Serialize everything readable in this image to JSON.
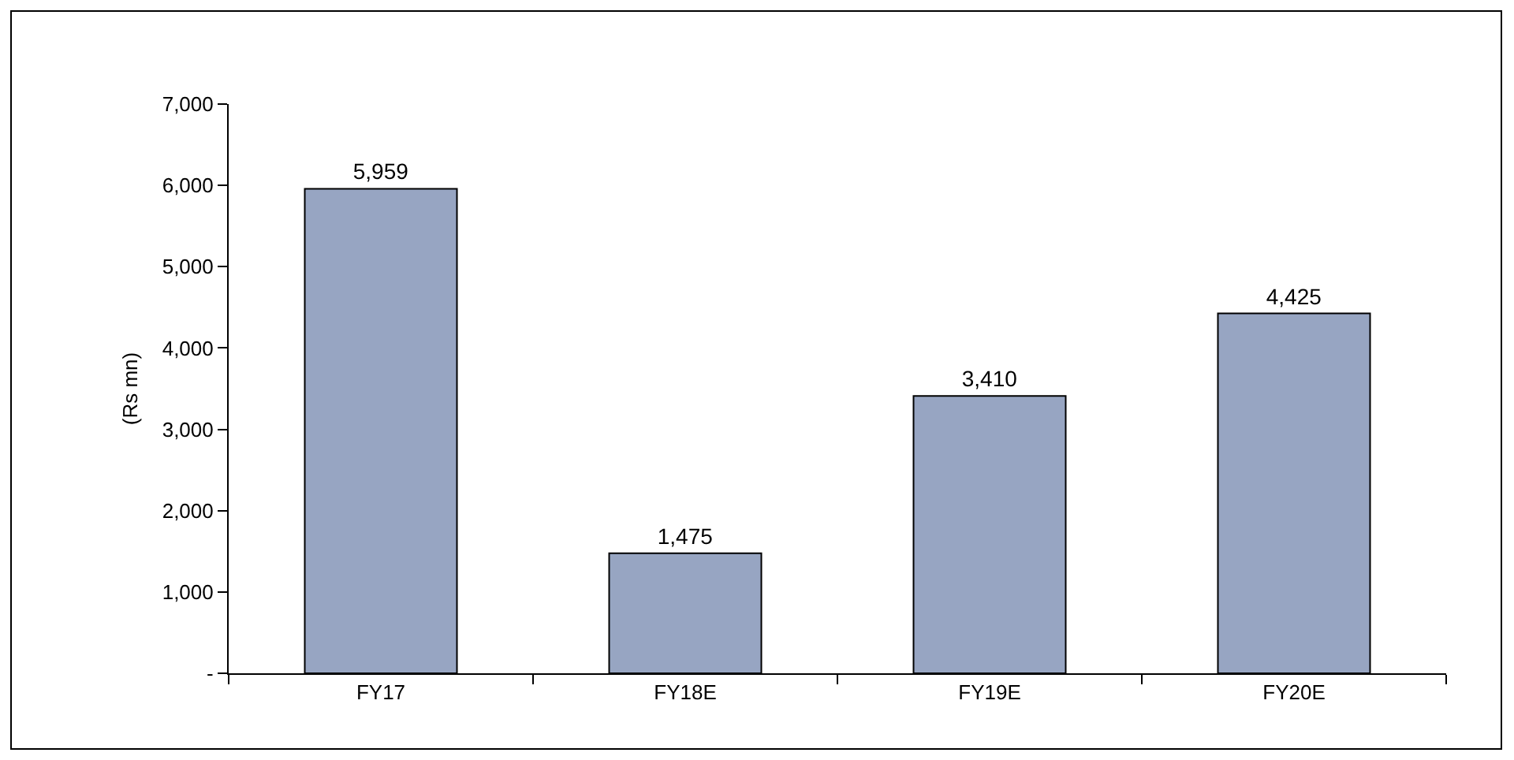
{
  "chart_data": {
    "type": "bar",
    "ylabel": "(Rs mn)",
    "categories": [
      "FY17",
      "FY18E",
      "FY19E",
      "FY20E"
    ],
    "values": [
      5959,
      1475,
      3410,
      4425
    ],
    "color": "#97a5c2",
    "ylim": [
      0,
      7000
    ],
    "yticks": [
      {
        "value": 0,
        "label": "-"
      },
      {
        "value": 1000,
        "label": "1,000"
      },
      {
        "value": 2000,
        "label": "2,000"
      },
      {
        "value": 3000,
        "label": "3,000"
      },
      {
        "value": 4000,
        "label": "4,000"
      },
      {
        "value": 5000,
        "label": "5,000"
      },
      {
        "value": 6000,
        "label": "6,000"
      },
      {
        "value": 7000,
        "label": "7,000"
      }
    ],
    "value_labels": [
      "5,959",
      "1,475",
      "3,410",
      "4,425"
    ],
    "legend": false
  }
}
